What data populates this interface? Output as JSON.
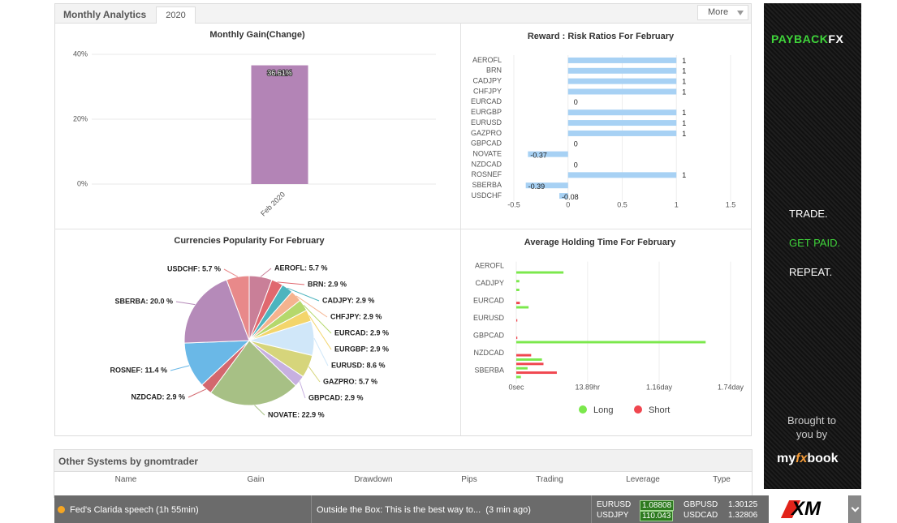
{
  "header": {
    "tab": "Monthly Analytics",
    "year": "2020",
    "more": "More"
  },
  "chart_data": [
    {
      "type": "bar",
      "title": "Monthly Gain(Change)",
      "categories": [
        "Feb 2020"
      ],
      "values": [
        36.61
      ],
      "value_labels": [
        "36.61%"
      ],
      "color": "#b384b6",
      "ylim": [
        0,
        40
      ],
      "yticks": [
        {
          "value": 0,
          "label": "0%"
        },
        {
          "value": 20,
          "label": "20%"
        },
        {
          "value": 40,
          "label": "40%"
        }
      ],
      "grid": true
    },
    {
      "type": "barh",
      "title": "Reward : Risk Ratios For February",
      "categories": [
        "AEROFL",
        "BRN",
        "CADJPY",
        "CHFJPY",
        "EURCAD",
        "EURGBP",
        "EURUSD",
        "GAZPRO",
        "GBPCAD",
        "NOVATE",
        "NZDCAD",
        "ROSNEF",
        "SBERBA",
        "USDCHF"
      ],
      "values": [
        1,
        1,
        1,
        1,
        0,
        1,
        1,
        1,
        0,
        -0.37,
        0,
        1,
        -0.39,
        -0.08
      ],
      "color": "#a7d1f4",
      "xlim": [
        -0.5,
        1.5
      ],
      "xticks": [
        -0.5,
        0,
        0.5,
        1,
        1.5
      ],
      "grid": true
    },
    {
      "type": "pie",
      "title": "Currencies Popularity For February",
      "categories": [
        "AEROFL",
        "BRN",
        "CADJPY",
        "CHFJPY",
        "EURCAD",
        "EURGBP",
        "EURUSD",
        "GAZPRO",
        "GBPCAD",
        "NOVATE",
        "NZDCAD",
        "ROSNEF",
        "SBERBA",
        "USDCHF"
      ],
      "values": [
        5.7,
        2.9,
        2.9,
        2.9,
        2.9,
        2.9,
        8.6,
        5.7,
        2.9,
        22.9,
        2.9,
        11.4,
        20.0,
        5.7
      ],
      "value_labels": [
        "AEROFL: 5.7 %",
        "BRN: 2.9 %",
        "CADJPY: 2.9 %",
        "CHFJPY: 2.9 %",
        "EURCAD: 2.9 %",
        "EURGBP: 2.9 %",
        "EURUSD: 8.6 %",
        "GAZPRO: 5.7 %",
        "GBPCAD: 2.9 %",
        "NOVATE: 22.9 %",
        "NZDCAD: 2.9 %",
        "ROSNEF: 11.4 %",
        "SBERBA: 20.0 %",
        "USDCHF: 5.7 %"
      ],
      "colors": [
        "#c97f98",
        "#e0686f",
        "#4db4be",
        "#f5b38f",
        "#b5d86c",
        "#f3d56b",
        "#d0e7f9",
        "#d6d57b",
        "#c7b0e0",
        "#a7c085",
        "#d3676e",
        "#6ab8e7",
        "#b58ab9",
        "#e8898a"
      ]
    },
    {
      "type": "barh",
      "title": "Average Holding Time For February",
      "categories": [
        "AEROFL",
        null,
        "CADJPY",
        null,
        "EURCAD",
        null,
        "EURUSD",
        null,
        "GBPCAD",
        null,
        "NZDCAD",
        null,
        "SBERBA",
        null
      ],
      "series": [
        {
          "name": "Long",
          "color": "#7be84c",
          "values": [
            0,
            9.2,
            0.6,
            0.6,
            0,
            2.4,
            0,
            0,
            0,
            36.9,
            0,
            5.0,
            2.2,
            0.9
          ]
        },
        {
          "name": "Short",
          "color": "#f0464f",
          "values": [
            0,
            0,
            0,
            0,
            0.7,
            0,
            0.2,
            0,
            0.2,
            0,
            2.9,
            5.3,
            7.9,
            0
          ]
        }
      ],
      "xlim": [
        0,
        41.76
      ],
      "xticks": [
        {
          "value": 0,
          "label": "0sec"
        },
        {
          "value": 13.89,
          "label": "13.89hr"
        },
        {
          "value": 27.84,
          "label": "1.16day"
        },
        {
          "value": 41.76,
          "label": "1.74day"
        }
      ],
      "grid": true
    }
  ],
  "ad": {
    "brand_a": "PAYBACK",
    "brand_b": "FX",
    "line1": "TRADE.",
    "line2": "GET PAID.",
    "line3": "REPEAT.",
    "by1": "Brought to",
    "by2": "you by",
    "logo_a": "my",
    "logo_b": "fx",
    "logo_c": "book"
  },
  "other_systems": {
    "title": "Other Systems by gnomtrader",
    "columns": [
      "Name",
      "Gain",
      "Drawdown",
      "Pips",
      "Trading",
      "Leverage",
      "Type"
    ]
  },
  "ticker": {
    "news": "Fed's Clarida speech (1h 55min)",
    "article": "Outside the Box: This is the best way to...  (3 min ago)",
    "quotes": [
      {
        "symbol": "EURUSD",
        "price": 1.08808
      },
      {
        "symbol": "GBPUSD",
        "price": 1.30125
      },
      {
        "symbol": "USDJPY",
        "price": 110.043
      },
      {
        "symbol": "USDCAD",
        "price": 1.32806
      }
    ],
    "broker": "XM"
  }
}
